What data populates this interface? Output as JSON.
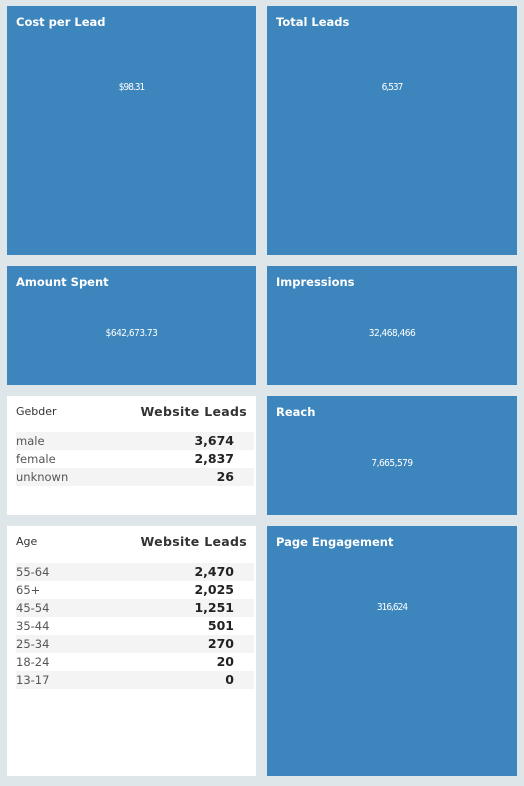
{
  "cards": {
    "cost_per_lead": {
      "title": "Cost per Lead",
      "value": "$98.31"
    },
    "total_leads": {
      "title": "Total Leads",
      "value": "6,537"
    },
    "amount_spent": {
      "title": "Amount Spent",
      "value": "$642,673.73"
    },
    "impressions": {
      "title": "Impressions",
      "value": "32,468,466"
    },
    "reach": {
      "title": "Reach",
      "value": "7,665,579"
    },
    "page_engagement": {
      "title": "Page Engagement",
      "value": "316,624"
    }
  },
  "gender_table": {
    "col1": "Gebder",
    "col2": "Website Leads",
    "rows": [
      {
        "label": "male",
        "value": "3,674"
      },
      {
        "label": "female",
        "value": "2,837"
      },
      {
        "label": "unknown",
        "value": "26"
      }
    ]
  },
  "age_table": {
    "col1": "Age",
    "col2": "Website Leads",
    "rows": [
      {
        "label": "55-64",
        "value": "2,470"
      },
      {
        "label": "65+",
        "value": "2,025"
      },
      {
        "label": "45-54",
        "value": "1,251"
      },
      {
        "label": "35-44",
        "value": "501"
      },
      {
        "label": "25-34",
        "value": "270"
      },
      {
        "label": "18-24",
        "value": "20"
      },
      {
        "label": "13-17",
        "value": "0"
      }
    ]
  },
  "colors": {
    "card_blue": "#3d85bd",
    "background": "#dfe6e9"
  }
}
